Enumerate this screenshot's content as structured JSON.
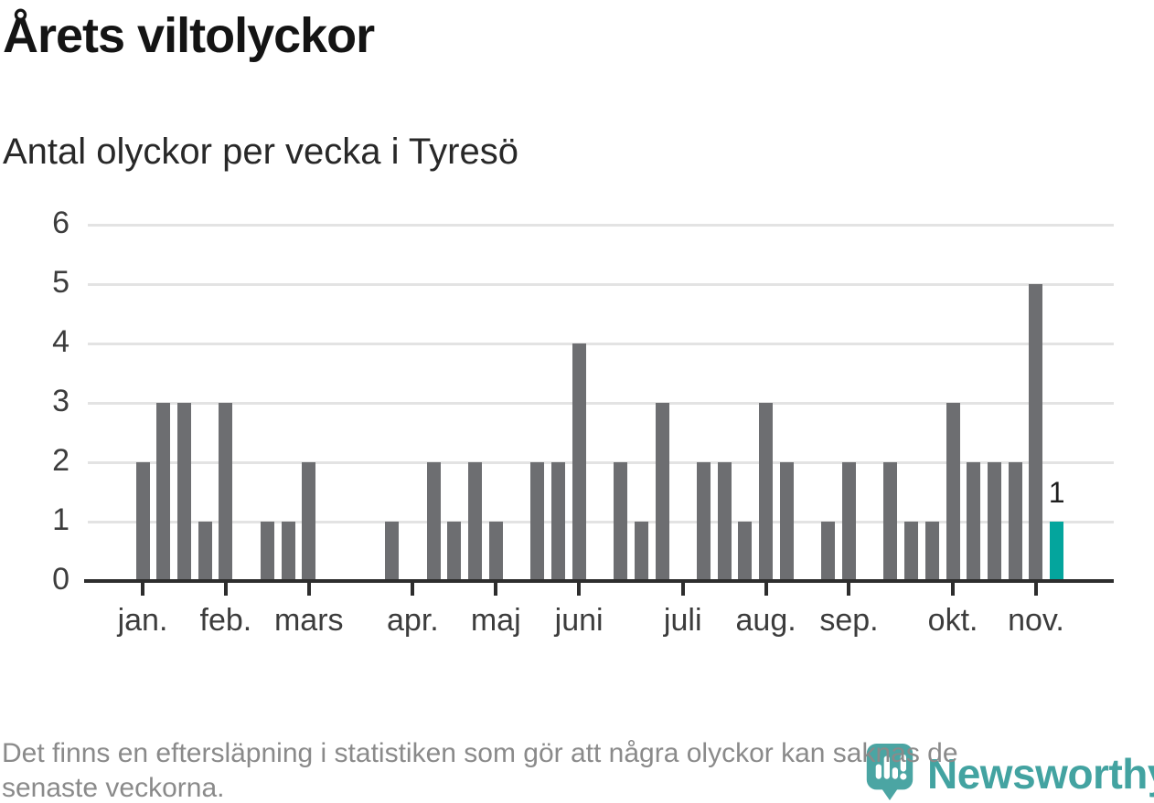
{
  "title": "Årets viltolyckor",
  "subtitle": "Antal olyckor per vecka i Tyresö",
  "footer": {
    "line1": "Det finns en eftersläpning i statistiken som gör att några olyckor kan saknas de",
    "line2": "senaste veckorna."
  },
  "logo": {
    "wordmark": "Newsworthy",
    "pin_icon": "newsworthy-pin-icon",
    "color": "#43a3a1"
  },
  "colors": {
    "bar": "#6d6e71",
    "highlight": "#04a59d",
    "grid": "#e3e3e3",
    "axis": "#2d2d2d",
    "tick_label": "#3c3c3c",
    "footer_text": "#8a8a8a"
  },
  "chart_data": {
    "type": "bar",
    "title": "Årets viltolyckor",
    "subtitle": "Antal olyckor per vecka i Tyresö",
    "x_unit": "vecka (week of year)",
    "ylabel": "",
    "xlabel": "",
    "ylim": [
      0,
      6
    ],
    "yticks": [
      0,
      1,
      2,
      3,
      4,
      5,
      6
    ],
    "grid": true,
    "values": [
      2,
      3,
      3,
      1,
      3,
      0,
      1,
      1,
      2,
      0,
      0,
      0,
      1,
      0,
      2,
      1,
      2,
      1,
      0,
      2,
      2,
      4,
      0,
      2,
      1,
      3,
      0,
      2,
      2,
      1,
      3,
      2,
      0,
      1,
      2,
      0,
      2,
      1,
      1,
      3,
      2,
      2,
      2,
      5,
      1
    ],
    "highlight_last": true,
    "last_value_label": "1",
    "month_ticks": [
      {
        "label": "jan.",
        "week": 0
      },
      {
        "label": "feb.",
        "week": 4
      },
      {
        "label": "mars",
        "week": 8
      },
      {
        "label": "apr.",
        "week": 13
      },
      {
        "label": "maj",
        "week": 17
      },
      {
        "label": "juni",
        "week": 21
      },
      {
        "label": "juli",
        "week": 26
      },
      {
        "label": "aug.",
        "week": 30
      },
      {
        "label": "sep.",
        "week": 34
      },
      {
        "label": "okt.",
        "week": 39
      },
      {
        "label": "nov.",
        "week": 43
      }
    ]
  }
}
